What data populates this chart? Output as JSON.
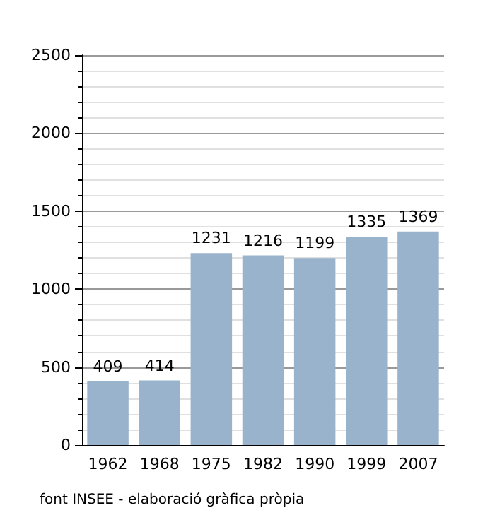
{
  "chart_data": {
    "type": "bar",
    "categories": [
      "1962",
      "1968",
      "1975",
      "1982",
      "1990",
      "1999",
      "2007"
    ],
    "values": [
      409,
      414,
      1231,
      1216,
      1199,
      1335,
      1369
    ],
    "color": "#9ab3cd",
    "ylim": [
      0,
      2500
    ],
    "yticks": [
      0,
      500,
      1000,
      1500,
      2000,
      2500
    ],
    "grid": "y",
    "data_labels": true,
    "annotations": [
      "font INSEE - elaboració gràfica pròpia"
    ]
  }
}
